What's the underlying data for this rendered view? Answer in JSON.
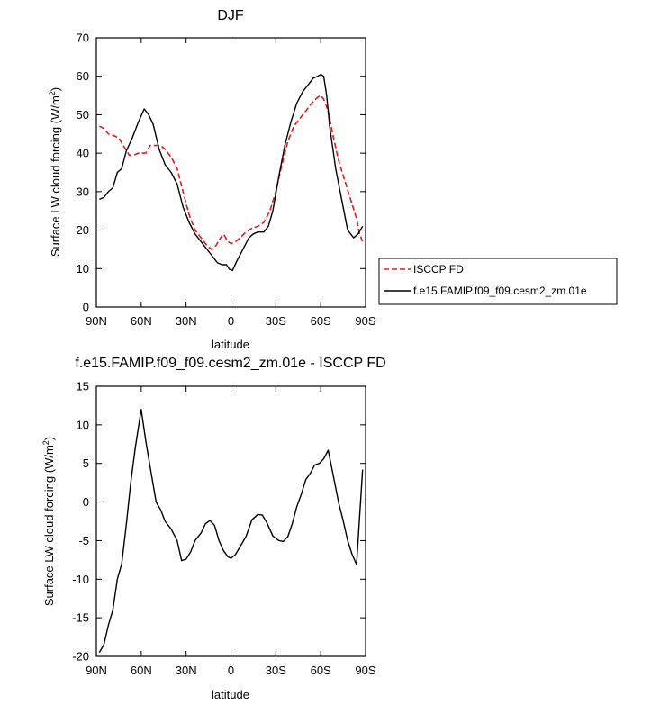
{
  "chart_data": [
    {
      "type": "line",
      "title": "DJF",
      "xlabel": "latitude",
      "ylabel": "Surface LW cloud forcing (W/m²)",
      "ylabel_main": "Surface LW cloud forcing (W/m",
      "ylabel_sup": "2",
      "ylabel_end": ")",
      "xlim": [
        90,
        -90
      ],
      "ylim": [
        0,
        70
      ],
      "xticks": [
        90,
        60,
        30,
        0,
        -30,
        -60,
        -90
      ],
      "xtick_labels": [
        "90N",
        "60N",
        "30N",
        "0",
        "30S",
        "60S",
        "90S"
      ],
      "yticks": [
        0,
        10,
        20,
        30,
        40,
        50,
        60,
        70
      ],
      "ytick_labels": [
        "0",
        "10",
        "20",
        "30",
        "40",
        "50",
        "60",
        "70"
      ],
      "legend_position": "right",
      "series": [
        {
          "name": "ISCCP FD",
          "color": "#e41a1c",
          "dash": "dashed",
          "x": [
            88,
            85,
            82,
            78,
            75,
            72,
            68,
            65,
            62,
            60,
            57,
            54,
            50,
            47,
            44,
            40,
            36,
            32,
            28,
            24,
            20,
            16,
            13,
            10,
            7,
            5,
            2,
            0,
            -3,
            -6,
            -10,
            -14,
            -18,
            -22,
            -26,
            -30,
            -34,
            -38,
            -42,
            -46,
            -50,
            -54,
            -58,
            -60,
            -62,
            -65,
            -68,
            -72,
            -76,
            -80,
            -84,
            -86,
            -88
          ],
          "y": [
            47,
            46.5,
            45,
            44.5,
            44,
            42,
            39.5,
            39.5,
            40,
            40,
            40,
            42,
            42,
            42,
            41,
            39,
            36,
            30,
            24,
            20,
            18,
            16,
            15,
            16,
            18,
            19,
            17,
            16.5,
            17,
            18,
            19.5,
            20.5,
            21,
            22,
            25,
            30,
            37,
            43,
            47,
            49,
            51,
            53,
            54.5,
            55,
            54,
            51,
            45,
            38,
            33,
            28,
            23,
            19,
            17
          ]
        },
        {
          "name": "f.e15.FAMIP.f09_f09.cesm2_zm.01e",
          "color": "#000000",
          "dash": "solid",
          "x": [
            88,
            85,
            82,
            79,
            76,
            73,
            70,
            66,
            62,
            58,
            55,
            52,
            48,
            44,
            40,
            36,
            32,
            28,
            24,
            20,
            16,
            12,
            9,
            6,
            3,
            1,
            -1,
            -4,
            -8,
            -12,
            -15,
            -18,
            -22,
            -25,
            -28,
            -32,
            -36,
            -40,
            -44,
            -48,
            -52,
            -55,
            -58,
            -60,
            -62,
            -64,
            -66,
            -70,
            -74,
            -78,
            -82,
            -85,
            -88
          ],
          "y": [
            28,
            28.5,
            30,
            31,
            35,
            36,
            40.5,
            44,
            48,
            51.5,
            50,
            47.5,
            41,
            37,
            35,
            32,
            26,
            22,
            19,
            17,
            15,
            13,
            11.5,
            11,
            11,
            9.8,
            9.5,
            12,
            15,
            18,
            19,
            19.5,
            19.5,
            21,
            25,
            34,
            42,
            48,
            53,
            56,
            58,
            59.5,
            60,
            60.5,
            60,
            55,
            47,
            36,
            28,
            20,
            18,
            19,
            21
          ]
        }
      ]
    },
    {
      "type": "line",
      "title": "f.e15.FAMIP.f09_f09.cesm2_zm.01e - ISCCP FD",
      "xlabel": "latitude",
      "ylabel": "Surface LW cloud forcing (W/m²)",
      "ylabel_main": "Surface LW cloud forcing (W/m",
      "ylabel_sup": "2",
      "ylabel_end": ")",
      "xlim": [
        90,
        -90
      ],
      "ylim": [
        -20,
        15
      ],
      "xticks": [
        90,
        60,
        30,
        0,
        -30,
        -60,
        -90
      ],
      "xtick_labels": [
        "90N",
        "60N",
        "30N",
        "0",
        "30S",
        "60S",
        "90S"
      ],
      "yticks": [
        -20,
        -15,
        -10,
        -5,
        0,
        5,
        10,
        15
      ],
      "ytick_labels": [
        "-20",
        "-15",
        "-10",
        "-5",
        "0",
        "5",
        "10",
        "15"
      ],
      "series": [
        {
          "name": "",
          "color": "#000000",
          "dash": "solid",
          "x": [
            88,
            85,
            82,
            79,
            76,
            73,
            70,
            67,
            64,
            60,
            57,
            54,
            50,
            47,
            44,
            40,
            36,
            33,
            30,
            27,
            24,
            20,
            17,
            14,
            11,
            8,
            5,
            2,
            0,
            -3,
            -6,
            -10,
            -14,
            -18,
            -21,
            -24,
            -28,
            -32,
            -35,
            -38,
            -41,
            -44,
            -47,
            -50,
            -53,
            -56,
            -59,
            -62,
            -65,
            -68,
            -72,
            -75,
            -78,
            -81,
            -84,
            -88
          ],
          "y": [
            -19.5,
            -18.5,
            -16,
            -14,
            -10,
            -8,
            -3,
            2.5,
            7,
            12,
            8,
            4.5,
            0,
            -1,
            -2.5,
            -3.5,
            -5,
            -7.6,
            -7.4,
            -6.5,
            -5,
            -4,
            -2.8,
            -2.4,
            -3,
            -5,
            -6.3,
            -7.1,
            -7.3,
            -6.8,
            -5.8,
            -4.5,
            -2.3,
            -1.6,
            -1.7,
            -2.7,
            -4.4,
            -5,
            -5.1,
            -4.5,
            -2.8,
            -0.6,
            1,
            2.9,
            3.7,
            4.8,
            5,
            5.6,
            6.7,
            3.8,
            -0.1,
            -2.4,
            -5,
            -6.8,
            -8.1,
            4.2
          ]
        }
      ]
    }
  ]
}
